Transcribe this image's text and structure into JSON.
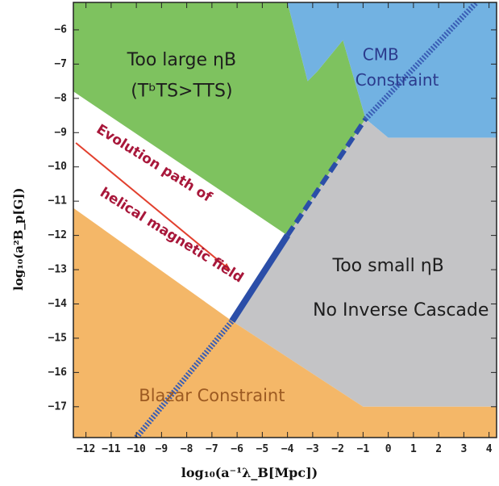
{
  "chart_data": {
    "type": "area",
    "xlabel": "log₁₀(a⁻¹λ_B[Mpc])",
    "ylabel": "log₁₀(a²B_p[G])",
    "xlim": [
      -12.5,
      4.3
    ],
    "ylim": [
      -17.9,
      -5.2
    ],
    "x_ticks": [
      -12,
      -11,
      -10,
      -9,
      -8,
      -7,
      -6,
      -5,
      -4,
      -3,
      -2,
      -1,
      0,
      1,
      2,
      3,
      4
    ],
    "y_ticks": [
      -6,
      -7,
      -8,
      -9,
      -10,
      -11,
      -12,
      -13,
      -14,
      -15,
      -16,
      -17
    ],
    "grid": false,
    "regions": [
      {
        "name": "Too large η_B (T^b_TS > T_TS)",
        "color": "#7ec25f",
        "polygon": [
          [
            -12.5,
            -5.2
          ],
          [
            -4.0,
            -5.2
          ],
          [
            -3.2,
            -7.5
          ],
          [
            -2.8,
            -7.2
          ],
          [
            -1.8,
            -6.3
          ],
          [
            -0.9,
            -8.6
          ],
          [
            -4.0,
            -12.0
          ],
          [
            -12.5,
            -7.8
          ]
        ]
      },
      {
        "name": "CMB Constraint",
        "color": "#72b2e2",
        "polygon": [
          [
            -4.0,
            -5.2
          ],
          [
            4.3,
            -5.2
          ],
          [
            4.3,
            -9.15
          ],
          [
            0.0,
            -9.15
          ],
          [
            -0.9,
            -8.6
          ],
          [
            -1.8,
            -6.3
          ],
          [
            -2.8,
            -7.2
          ],
          [
            -3.2,
            -7.5
          ]
        ]
      },
      {
        "name": "Too small η_B / No Inverse Cascade",
        "color": "#c4c4c6",
        "polygon": [
          [
            -0.9,
            -8.6
          ],
          [
            0.0,
            -9.15
          ],
          [
            4.3,
            -9.15
          ],
          [
            4.3,
            -17.0
          ],
          [
            -1.0,
            -17.0
          ],
          [
            -6.2,
            -14.5
          ],
          [
            -4.0,
            -12.0
          ]
        ]
      },
      {
        "name": "Blazar Constraint",
        "color": "#f4b768",
        "polygon": [
          [
            -12.5,
            -11.2
          ],
          [
            -6.2,
            -14.5
          ],
          [
            -1.0,
            -17.0
          ],
          [
            4.3,
            -17.0
          ],
          [
            4.3,
            -17.9
          ],
          [
            -12.5,
            -17.9
          ]
        ]
      }
    ],
    "lines": [
      {
        "name": "boundary",
        "style": "dotted",
        "color": "#3a5eb5",
        "points": [
          [
            -10.0,
            -17.9
          ],
          [
            -6.2,
            -14.5
          ]
        ]
      },
      {
        "name": "boundary",
        "style": "solid",
        "color": "#2b4ea8",
        "points": [
          [
            -6.2,
            -14.5
          ],
          [
            -4.0,
            -12.0
          ]
        ]
      },
      {
        "name": "boundary",
        "style": "dashed",
        "color": "#2b4ea8",
        "points": [
          [
            -4.0,
            -12.0
          ],
          [
            -0.9,
            -8.6
          ]
        ]
      },
      {
        "name": "boundary",
        "style": "dotted",
        "color": "#3a5eb5",
        "points": [
          [
            -0.9,
            -8.6
          ],
          [
            3.5,
            -5.2
          ]
        ]
      },
      {
        "name": "Evolution path",
        "style": "arrow",
        "color": "#e2402e",
        "points": [
          [
            -12.4,
            -9.3
          ],
          [
            -6.3,
            -13.0
          ]
        ]
      }
    ],
    "annotations": [
      {
        "text": "Too large ηB",
        "x": -8.2,
        "y": -6.9,
        "color": "#1d1d1d"
      },
      {
        "text": "(TᵇTS>TTS)",
        "x": -8.2,
        "y": -7.8,
        "color": "#1d1d1d"
      },
      {
        "text": "CMB",
        "x": -0.3,
        "y": -6.75,
        "color": "#2b3a8c"
      },
      {
        "text": "Constraint",
        "x": 0.35,
        "y": -7.5,
        "color": "#2b3a8c"
      },
      {
        "text": "Evolution path of",
        "x": -9.3,
        "y": -9.9,
        "color": "#a8173a",
        "angle": 32
      },
      {
        "text": "helical magnetic field",
        "x": -8.6,
        "y": -12.0,
        "color": "#a8173a",
        "angle": 32
      },
      {
        "text": "Too small ηB",
        "x": 0.0,
        "y": -12.9,
        "color": "#1d1d1d"
      },
      {
        "text": "No Inverse Cascade",
        "x": 0.5,
        "y": -14.2,
        "color": "#1d1d1d"
      },
      {
        "text": "Blazar Constraint",
        "x": -7.0,
        "y": -16.7,
        "color": "#9c5a22"
      }
    ]
  },
  "labels": {
    "xlabel_text": "log10(a-1λB[Mpc])",
    "ylabel_text": "log10(a²Bp[G])"
  }
}
